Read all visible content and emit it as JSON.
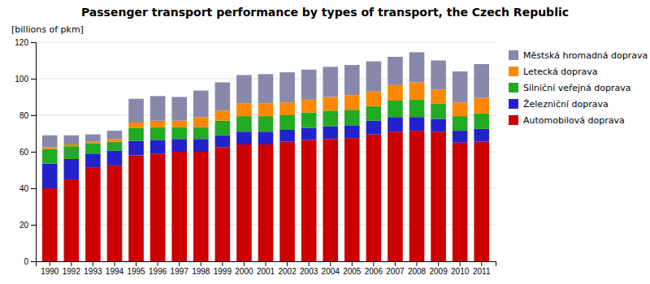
{
  "chart_data": {
    "type": "bar",
    "stacked": true,
    "title": "Passenger transport performance by types of transport, the Czech Republic",
    "ylabel": "[billions of pkm]",
    "categories": [
      "1990",
      "1992",
      "1993",
      "1994",
      "1995",
      "1996",
      "1997",
      "1998",
      "1999",
      "2000",
      "2001",
      "2002",
      "2003",
      "2004",
      "2005",
      "2006",
      "2007",
      "2008",
      "2009",
      "2010",
      "2011"
    ],
    "series": [
      {
        "name": "Automobilová doprava",
        "color": "#cc0000",
        "values": [
          40.0,
          44.5,
          51.5,
          52.5,
          58.0,
          59.0,
          60.0,
          60.0,
          62.5,
          64.0,
          64.0,
          65.5,
          66.5,
          67.0,
          67.5,
          69.5,
          71.0,
          71.5,
          71.0,
          65.0,
          65.5
        ]
      },
      {
        "name": "Železniční doprava",
        "color": "#2222cc",
        "values": [
          13.5,
          11.5,
          7.5,
          8.0,
          8.0,
          7.5,
          7.0,
          7.0,
          6.5,
          7.0,
          7.0,
          6.5,
          6.5,
          7.0,
          7.0,
          7.5,
          8.0,
          7.5,
          7.0,
          6.5,
          7.0
        ]
      },
      {
        "name": "Silniční veřejná doprava",
        "color": "#22aa22",
        "values": [
          8.0,
          7.0,
          5.5,
          5.0,
          7.0,
          7.0,
          6.5,
          6.5,
          8.0,
          8.5,
          8.5,
          8.0,
          8.5,
          8.5,
          8.5,
          8.0,
          9.0,
          9.5,
          8.5,
          8.0,
          8.5
        ]
      },
      {
        "name": "Letecká doprava",
        "color": "#ff8800",
        "values": [
          1.0,
          1.0,
          1.0,
          1.5,
          3.0,
          3.5,
          3.5,
          5.5,
          5.5,
          7.0,
          7.0,
          7.0,
          7.0,
          7.5,
          8.0,
          8.0,
          8.5,
          9.5,
          7.5,
          7.5,
          8.5
        ]
      },
      {
        "name": "Městská hromadná doprava",
        "color": "#8888aa",
        "values": [
          6.5,
          5.0,
          4.0,
          4.5,
          13.0,
          13.5,
          13.0,
          14.5,
          15.5,
          15.5,
          16.0,
          16.5,
          16.5,
          16.5,
          16.5,
          16.5,
          15.5,
          16.5,
          16.0,
          17.0,
          18.5
        ]
      }
    ],
    "ylim": [
      0,
      120
    ],
    "yticks": [
      0,
      20,
      40,
      60,
      80,
      100,
      120
    ],
    "grid": true,
    "legend": "right"
  }
}
